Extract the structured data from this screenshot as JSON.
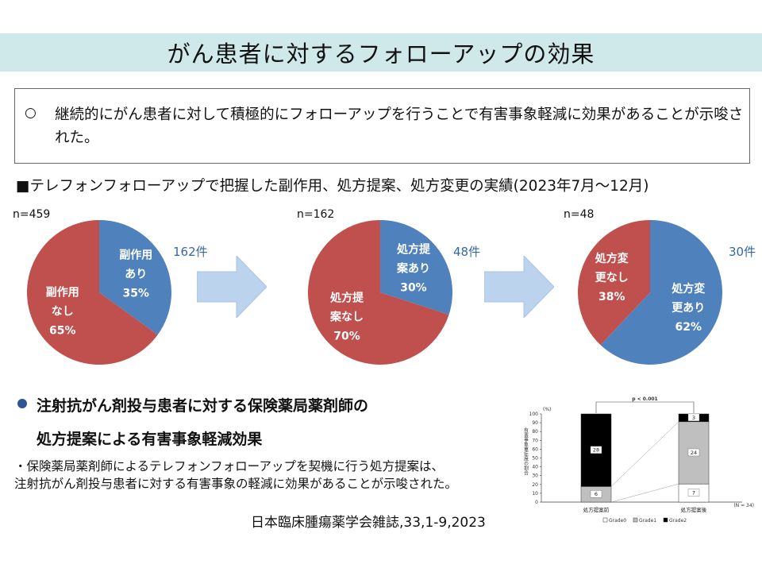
{
  "title": "がん患者に対するフォローアップの効果",
  "summary": {
    "bullet": "○",
    "text": "継続的にがん患者に対して積極的にフォローアップを行うことで有害事象軽減に効果があることが示唆された。"
  },
  "section_heading": "■テレフォンフォローアップで把握した副作用、処方提案、処方変更の実績(2023年7月～12月)",
  "colors": {
    "red": "#c0504d",
    "blue": "#4f81bd",
    "title_bg": "#cfe9ea",
    "arrow": "#bcd3ee"
  },
  "chart_data": [
    {
      "type": "pie",
      "n_label": "n=459",
      "count_label": "162件",
      "slices": [
        {
          "label_lines": [
            "副作用",
            "あり"
          ],
          "percent_label": "35%",
          "value": 35,
          "color": "#4f81bd"
        },
        {
          "label_lines": [
            "副作用",
            "なし"
          ],
          "percent_label": "65%",
          "value": 65,
          "color": "#c0504d"
        }
      ]
    },
    {
      "type": "pie",
      "n_label": "n=162",
      "count_label": "48件",
      "slices": [
        {
          "label_lines": [
            "処方提",
            "案あり"
          ],
          "percent_label": "30%",
          "value": 30,
          "color": "#4f81bd"
        },
        {
          "label_lines": [
            "処方提",
            "案なし"
          ],
          "percent_label": "70%",
          "value": 70,
          "color": "#c0504d"
        }
      ]
    },
    {
      "type": "pie",
      "n_label": "n=48",
      "count_label": "30件",
      "slices": [
        {
          "label_lines": [
            "処方変",
            "更あり"
          ],
          "percent_label": "62%",
          "value": 62,
          "color": "#4f81bd"
        },
        {
          "label_lines": [
            "処方変",
            "更なし"
          ],
          "percent_label": "38%",
          "value": 38,
          "color": "#c0504d"
        }
      ]
    },
    {
      "type": "bar",
      "stacked": true,
      "y_unit": "(%)",
      "ylim": [
        0,
        100
      ],
      "y_ticks": [
        "0",
        "10",
        "20",
        "30",
        "40",
        "50",
        "60",
        "70",
        "80",
        "90",
        "100"
      ],
      "ylabel": "有害事象重症度の割合",
      "categories": [
        "処方提案前",
        "処方提案後"
      ],
      "series": [
        {
          "name": "Grade0",
          "color": "#ffffff",
          "values": [
            0,
            7
          ],
          "labels": [
            "",
            "7"
          ]
        },
        {
          "name": "Grade1",
          "color": "#bfbfbf",
          "values": [
            6,
            24
          ],
          "labels": [
            "6",
            "24"
          ]
        },
        {
          "name": "Grade2",
          "color": "#000000",
          "values": [
            28,
            3
          ],
          "labels": [
            "28",
            "3"
          ]
        }
      ],
      "p_value": "p < 0.001",
      "n_note": "(N = 34)",
      "legend_position": "bottom"
    }
  ],
  "section2": {
    "heading_line1": "注射抗がん剤投与患者に対する保険薬局薬剤師の",
    "heading_line2": "処方提案による有害事象軽減効果",
    "note_line1": "・保険薬局薬剤師によるテレフォンフォローアップを契機に行う処方提案は、",
    "note_line2": "注射抗がん剤投与患者に対する有害事象の軽減に効果があることが示唆された。",
    "citation": "日本臨床腫瘍薬学会雑誌,33,1-9,2023"
  }
}
